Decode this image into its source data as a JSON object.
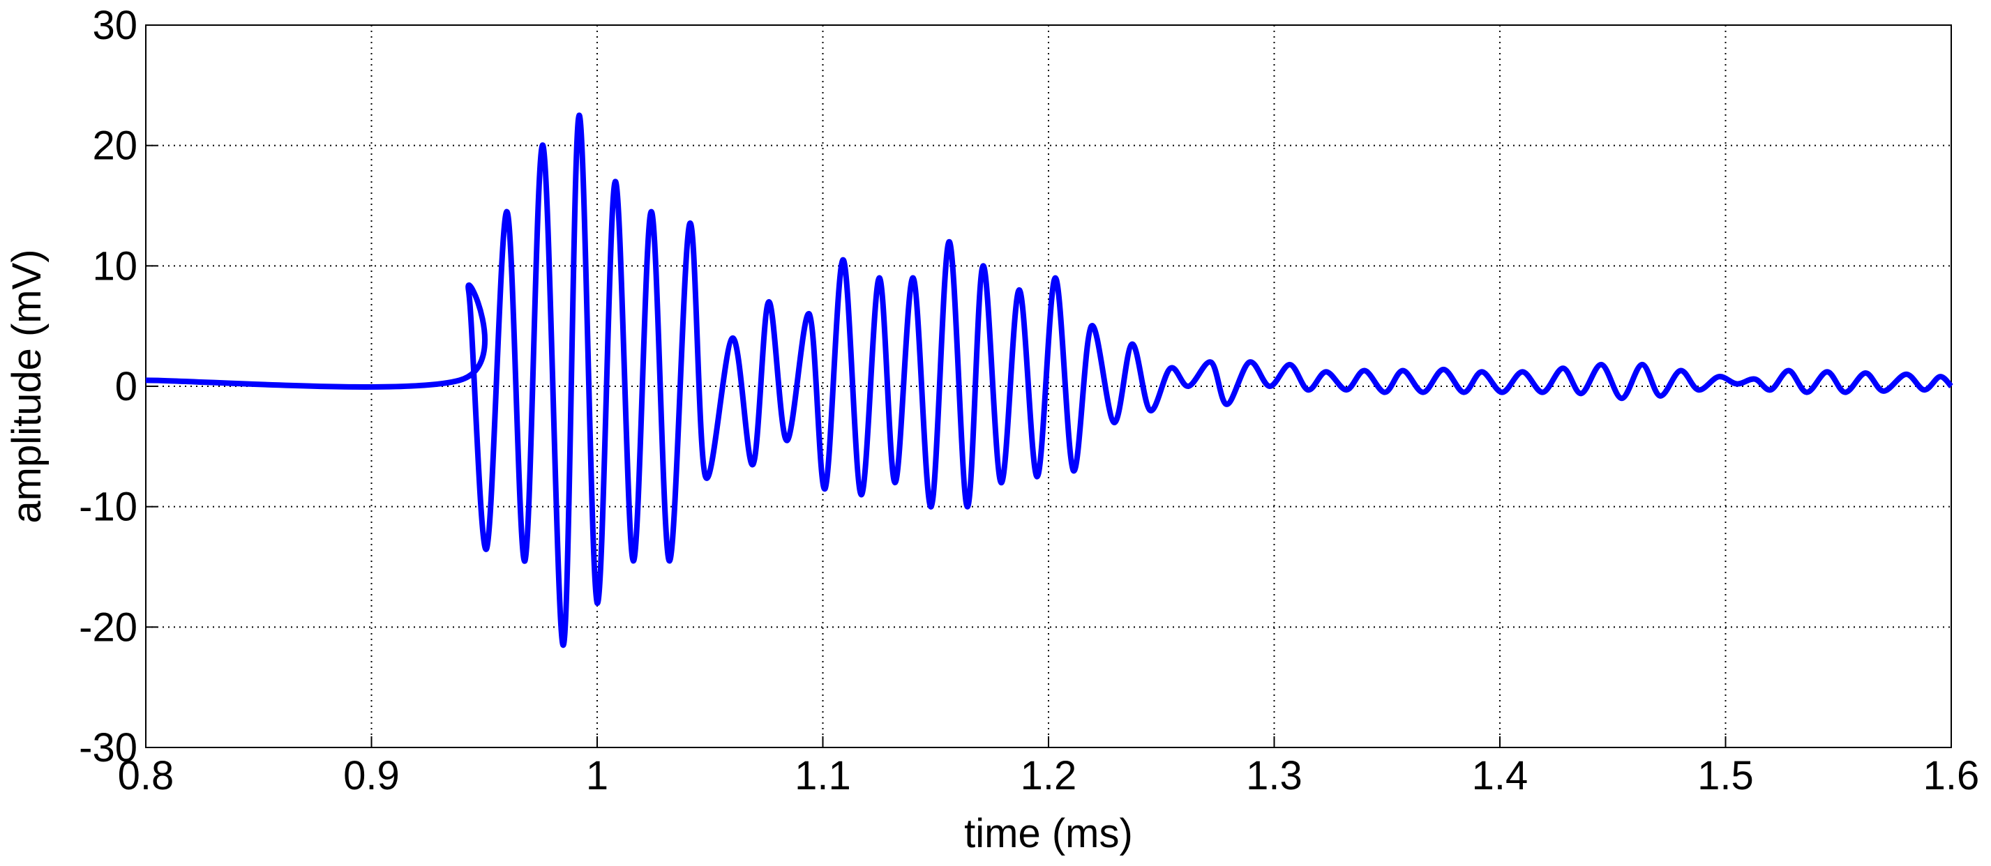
{
  "chart_data": {
    "type": "line",
    "xlabel": "time (ms)",
    "ylabel": "amplitude (mV)",
    "xlim": [
      0.8,
      1.6
    ],
    "xticks": [
      0.8,
      0.9,
      1,
      1.1,
      1.2,
      1.3,
      1.4,
      1.5,
      1.6
    ],
    "ylim": [
      -30,
      30
    ],
    "yticks": [
      -30,
      -20,
      -10,
      0,
      10,
      20,
      30
    ],
    "grid": true,
    "series": [
      {
        "color": "#0000ff",
        "x": [
          0.8,
          0.939,
          0.943,
          0.951,
          0.96,
          0.968,
          0.976,
          0.985,
          0.992,
          1.0,
          1.008,
          1.016,
          1.024,
          1.032,
          1.041,
          1.048,
          1.06,
          1.069,
          1.076,
          1.084,
          1.094,
          1.101,
          1.109,
          1.117,
          1.125,
          1.132,
          1.14,
          1.148,
          1.156,
          1.164,
          1.171,
          1.179,
          1.187,
          1.195,
          1.203,
          1.211,
          1.219,
          1.229,
          1.237,
          1.245,
          1.254,
          1.262,
          1.272,
          1.279,
          1.289,
          1.298,
          1.307,
          1.315,
          1.323,
          1.332,
          1.34,
          1.349,
          1.357,
          1.366,
          1.375,
          1.384,
          1.392,
          1.401,
          1.41,
          1.419,
          1.428,
          1.436,
          1.445,
          1.454,
          1.463,
          1.471,
          1.48,
          1.488,
          1.497,
          1.505,
          1.513,
          1.52,
          1.528,
          1.536,
          1.545,
          1.553,
          1.562,
          1.57,
          1.58,
          1.588,
          1.595,
          1.6
        ],
        "values": [
          0.5,
          0.5,
          8,
          -13.5,
          14.5,
          -14.5,
          20,
          -21.5,
          22.5,
          -18,
          17,
          -14.5,
          14.5,
          -14.5,
          13.5,
          -7.5,
          4,
          -6.5,
          7,
          -4.5,
          6,
          -8.5,
          10.5,
          -9,
          9,
          -8,
          9,
          -10,
          12,
          -10,
          10,
          -8,
          8,
          -7.5,
          9,
          -7,
          5,
          -3,
          3.5,
          -2,
          1.5,
          0,
          2,
          -1.5,
          2,
          0,
          1.8,
          -0.3,
          1.2,
          -0.3,
          1.3,
          -0.5,
          1.3,
          -0.5,
          1.4,
          -0.5,
          1.2,
          -0.5,
          1.2,
          -0.5,
          1.5,
          -0.6,
          1.8,
          -1,
          1.8,
          -0.8,
          1.3,
          -0.3,
          0.8,
          0.2,
          0.6,
          -0.3,
          1.3,
          -0.5,
          1.2,
          -0.5,
          1.1,
          -0.4,
          1.0,
          -0.3,
          0.8,
          0
        ]
      }
    ]
  }
}
